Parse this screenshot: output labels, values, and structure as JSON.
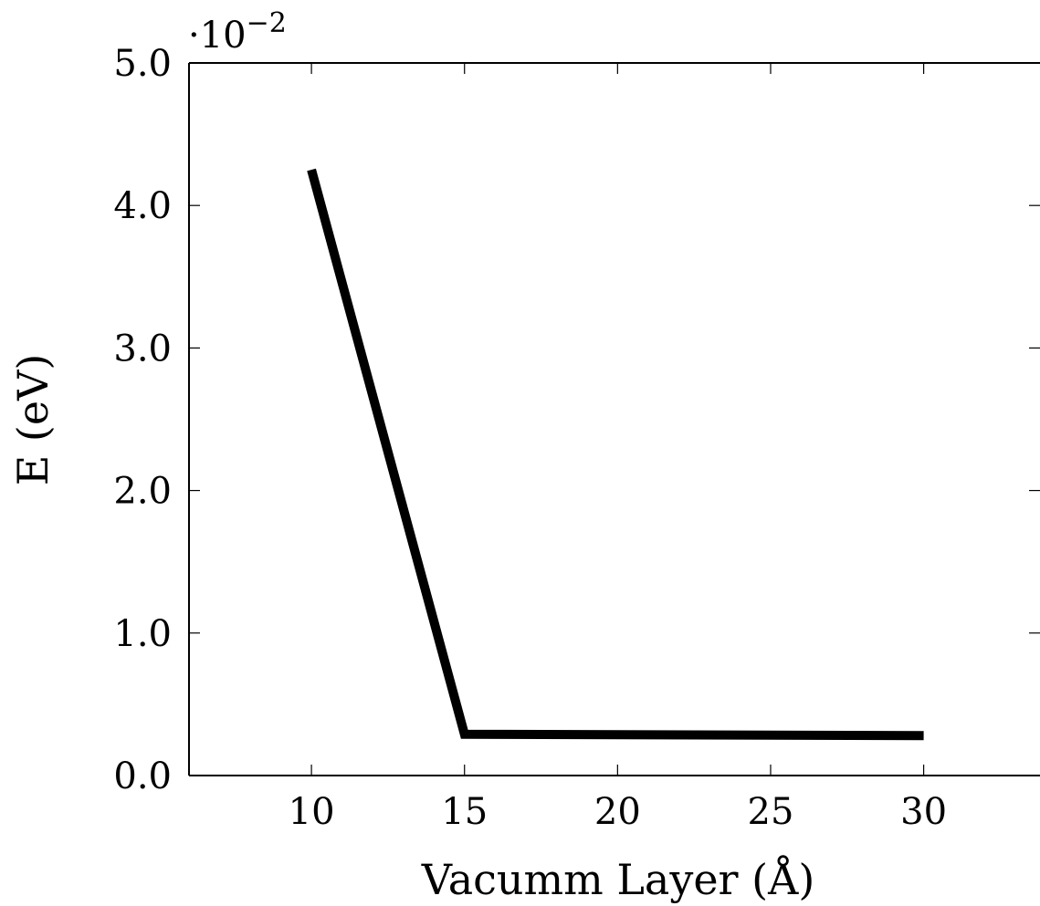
{
  "chart_data": {
    "type": "line",
    "title": "",
    "xlabel": "Vacumm Layer (Å)",
    "ylabel": "E (eV)",
    "y_scale_prefix": "·10",
    "y_scale_exponent": "−2",
    "xlim": [
      6,
      33.8
    ],
    "ylim": [
      0.0,
      5.0
    ],
    "xticks": [
      10,
      15,
      20,
      25,
      30
    ],
    "xtick_labels": [
      "10",
      "15",
      "20",
      "25",
      "30"
    ],
    "yticks": [
      0.0,
      1.0,
      2.0,
      3.0,
      4.0,
      5.0
    ],
    "ytick_labels": [
      "0.0",
      "1.0",
      "2.0",
      "3.0",
      "4.0",
      "5.0"
    ],
    "grid": false,
    "legend": "none",
    "series": [
      {
        "x": [
          10,
          15,
          30
        ],
        "y": [
          4.25,
          0.29,
          0.28
        ],
        "color": "#000000"
      }
    ]
  }
}
